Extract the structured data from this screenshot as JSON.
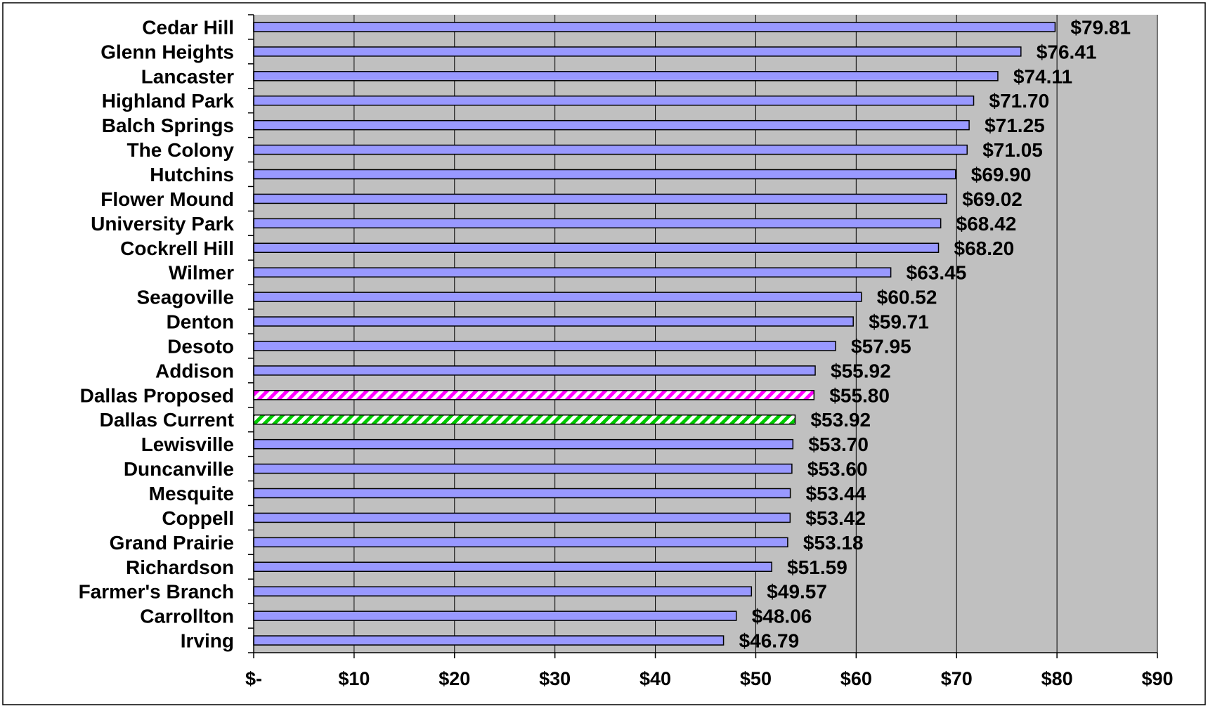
{
  "chart_data": {
    "type": "bar",
    "orientation": "horizontal",
    "categories": [
      "Cedar Hill",
      "Glenn Heights",
      "Lancaster",
      "Highland Park",
      "Balch Springs",
      "The Colony",
      "Hutchins",
      "Flower Mound",
      "University Park",
      "Cockrell Hill",
      "Wilmer",
      "Seagoville",
      "Denton",
      "Desoto",
      "Addison",
      "Dallas Proposed",
      "Dallas Current",
      "Lewisville",
      "Duncanville",
      "Mesquite",
      "Coppell",
      "Grand Prairie",
      "Richardson",
      "Farmer's Branch",
      "Carrollton",
      "Irving"
    ],
    "values": [
      79.81,
      76.41,
      74.11,
      71.7,
      71.25,
      71.05,
      69.9,
      69.02,
      68.42,
      68.2,
      63.45,
      60.52,
      59.71,
      57.95,
      55.92,
      55.8,
      53.92,
      53.7,
      53.6,
      53.44,
      53.42,
      53.18,
      51.59,
      49.57,
      48.06,
      46.79
    ],
    "value_labels": [
      "$79.81",
      "$76.41",
      "$74.11",
      "$71.70",
      "$71.25",
      "$71.05",
      "$69.90",
      "$69.02",
      "$68.42",
      "$68.20",
      "$63.45",
      "$60.52",
      "$59.71",
      "$57.95",
      "$55.92",
      "$55.80",
      "$53.92",
      "$53.70",
      "$53.60",
      "$53.44",
      "$53.42",
      "$53.18",
      "$51.59",
      "$49.57",
      "$48.06",
      "$46.79"
    ],
    "highlight": {
      "Dallas Proposed": "magenta-hatch",
      "Dallas Current": "green-hatch"
    },
    "xlim": [
      0,
      90
    ],
    "xticks": [
      0,
      10,
      20,
      30,
      40,
      50,
      60,
      70,
      80,
      90
    ],
    "xtick_labels": [
      "$-",
      "$10",
      "$20",
      "$30",
      "$40",
      "$50",
      "$60",
      "$70",
      "$80",
      "$90"
    ],
    "grid": "vertical",
    "title": "",
    "xlabel": "",
    "ylabel": "",
    "colors": {
      "plot_background": "#c0c0c0",
      "bar_fill": "#9999ff",
      "bar_edge": "#000000",
      "magenta_hatch": "#ff00ff",
      "green_hatch": "#00cc00",
      "grid": "#000000"
    }
  }
}
